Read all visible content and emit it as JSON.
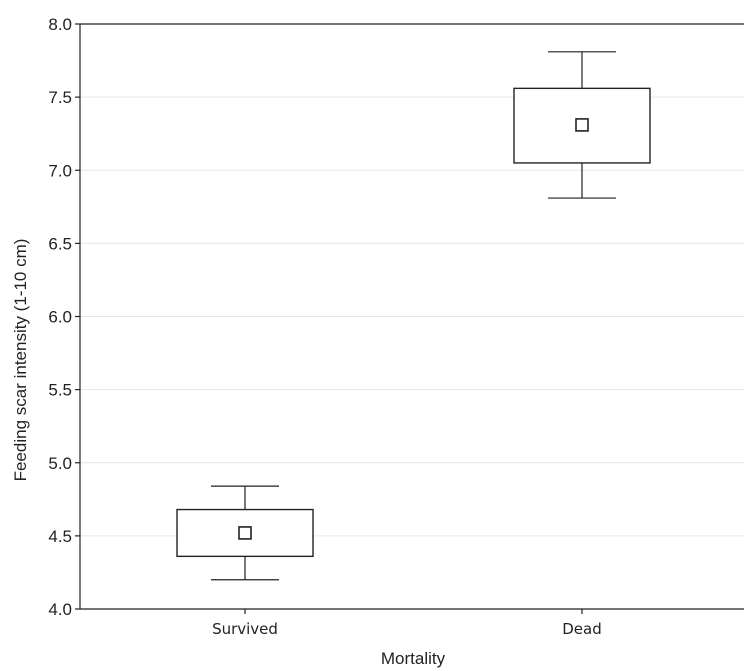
{
  "chart_data": {
    "type": "box",
    "xlabel": "Mortality",
    "ylabel": "Feeding scar intensity (1-10 cm)",
    "ylim": [
      4.0,
      8.0
    ],
    "yticks": [
      "4.0",
      "4.5",
      "5.0",
      "5.5",
      "6.0",
      "6.5",
      "7.0",
      "7.5",
      "8.0"
    ],
    "ytick_values": [
      4.0,
      4.5,
      5.0,
      5.5,
      6.0,
      6.5,
      7.0,
      7.5,
      8.0
    ],
    "grid": true,
    "categories": [
      "Survived",
      "Dead"
    ],
    "boxes": [
      {
        "category": "Survived",
        "mean": 4.52,
        "box_low": 4.36,
        "box_high": 4.68,
        "whisker_low": 4.2,
        "whisker_high": 4.84
      },
      {
        "category": "Dead",
        "mean": 7.31,
        "box_low": 7.05,
        "box_high": 7.56,
        "whisker_low": 6.81,
        "whisker_high": 7.81
      }
    ],
    "colors": {
      "line": "#222222",
      "grid": "#e6e6e6",
      "background": "#ffffff"
    }
  }
}
